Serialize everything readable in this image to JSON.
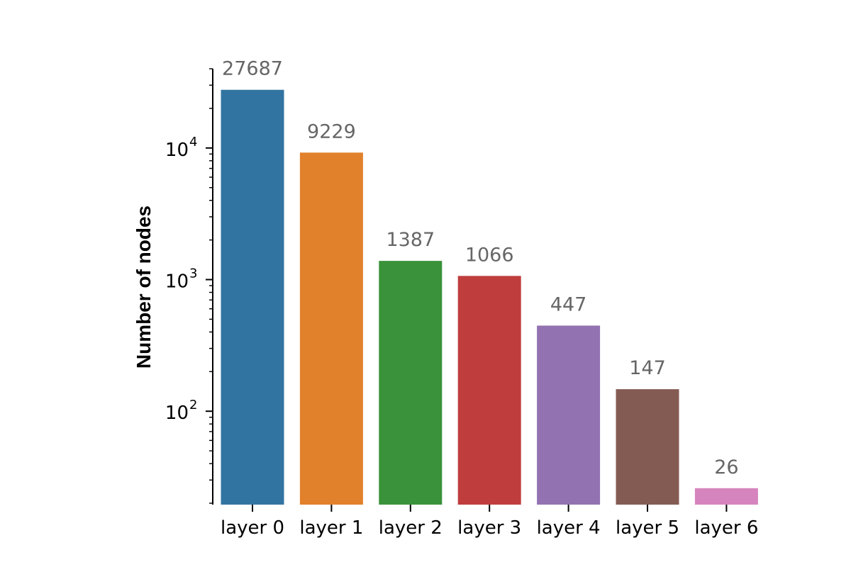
{
  "chart_data": {
    "type": "bar",
    "categories": [
      "layer 0",
      "layer 1",
      "layer 2",
      "layer 3",
      "layer 4",
      "layer 5",
      "layer 6"
    ],
    "values": [
      27687,
      9229,
      1387,
      1066,
      447,
      147,
      26
    ],
    "value_labels": [
      "27687",
      "9229",
      "1387",
      "1066",
      "447",
      "147",
      "26"
    ],
    "colors": [
      "#3274a1",
      "#e1812c",
      "#3a923a",
      "#c03d3e",
      "#9372b2",
      "#845b53",
      "#d684bd"
    ],
    "title": "",
    "xlabel": "",
    "ylabel": "Number of nodes",
    "yscale": "log",
    "ylim": [
      19.5,
      40000
    ],
    "major_ticks": [
      {
        "value": 100,
        "base": "10",
        "exp": "2"
      },
      {
        "value": 1000,
        "base": "10",
        "exp": "3"
      },
      {
        "value": 10000,
        "base": "10",
        "exp": "4"
      }
    ],
    "grid": false,
    "legend": "none"
  }
}
